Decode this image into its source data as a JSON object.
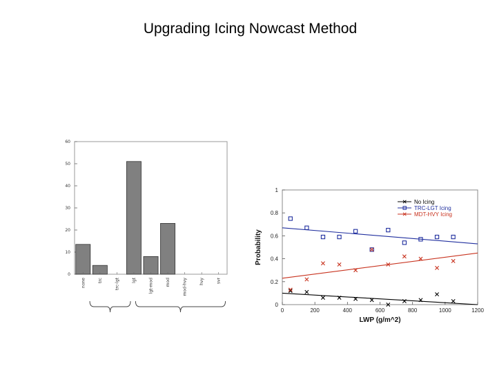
{
  "slide": {
    "title": "Upgrading Icing Nowcast Method"
  },
  "chart_data": [
    {
      "type": "bar",
      "title": "",
      "xlabel": "",
      "ylabel": "",
      "ylim": [
        0,
        60
      ],
      "yticks": [
        "0",
        "10",
        "20",
        "30",
        "40",
        "50",
        "60"
      ],
      "categories": [
        "none",
        "trc",
        "trc-lgt",
        "lgt",
        "lgt-mod",
        "mod",
        "mod-hvy",
        "hvy",
        "svr"
      ],
      "values": [
        13.5,
        4,
        0,
        51,
        8,
        23,
        0,
        0,
        0
      ],
      "bar_color": "#808080",
      "grid": false,
      "groupings": "braces under trc..lgt and lgt-mod..svr"
    },
    {
      "type": "scatter",
      "title": "",
      "xlabel": "LWP (g/m^2)",
      "ylabel": "Probability",
      "xlim": [
        0,
        1200
      ],
      "ylim": [
        0,
        1
      ],
      "xticks": [
        "0",
        "200",
        "400",
        "600",
        "800",
        "1000",
        "1200"
      ],
      "yticks": [
        "0",
        "0.2",
        "0.4",
        "0.6",
        "0.8",
        "1"
      ],
      "legend_position": "top-right",
      "grid": false,
      "series": [
        {
          "name": "No Icing",
          "color": "#000000",
          "marker": "x",
          "x": [
            50,
            150,
            250,
            350,
            450,
            550,
            650,
            750,
            850,
            950,
            1050
          ],
          "y": [
            0.12,
            0.11,
            0.06,
            0.06,
            0.05,
            0.04,
            0.0,
            0.03,
            0.04,
            0.09,
            0.03
          ],
          "fit": [
            0.1,
            0.0
          ]
        },
        {
          "name": "TRC-LGT Icing",
          "color": "#1f2e9e",
          "marker": "square",
          "x": [
            50,
            150,
            250,
            350,
            450,
            550,
            650,
            750,
            850,
            950,
            1050
          ],
          "y": [
            0.75,
            0.67,
            0.59,
            0.59,
            0.64,
            0.48,
            0.65,
            0.54,
            0.57,
            0.59,
            0.59
          ],
          "fit": [
            0.67,
            0.53
          ]
        },
        {
          "name": "MDT-HVY Icing",
          "color": "#c8321e",
          "marker": "x",
          "x": [
            50,
            150,
            250,
            350,
            450,
            550,
            650,
            750,
            850,
            950,
            1050
          ],
          "y": [
            0.13,
            0.22,
            0.36,
            0.35,
            0.3,
            0.48,
            0.35,
            0.42,
            0.4,
            0.32,
            0.38
          ],
          "fit": [
            0.23,
            0.45
          ]
        }
      ]
    }
  ]
}
